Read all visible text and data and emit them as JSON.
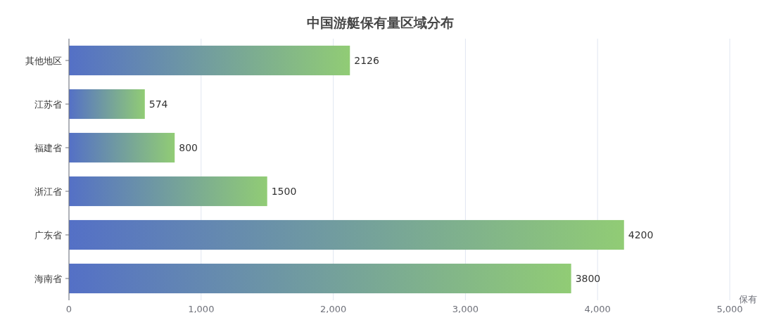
{
  "chart_data": {
    "type": "bar",
    "title": "中国游艇保有量区域分布",
    "orientation": "horizontal",
    "xlabel": "保有",
    "categories": [
      "其他地区",
      "江苏省",
      "福建省",
      "浙江省",
      "广东省",
      "海南省"
    ],
    "series": [
      {
        "color": "#91cc75",
        "values": [
          2126,
          574,
          800,
          1500,
          4200,
          3800
        ]
      }
    ],
    "xlim": [
      0,
      5000
    ],
    "xticks": [
      {
        "value": 0,
        "label": "0"
      },
      {
        "value": 1000,
        "label": "1,000"
      },
      {
        "value": 2000,
        "label": "2,000"
      },
      {
        "value": 3000,
        "label": "3,000"
      },
      {
        "value": 4000,
        "label": "4,000"
      },
      {
        "value": 5000,
        "label": "5,000"
      }
    ],
    "grid": "x",
    "data_labels": true
  }
}
